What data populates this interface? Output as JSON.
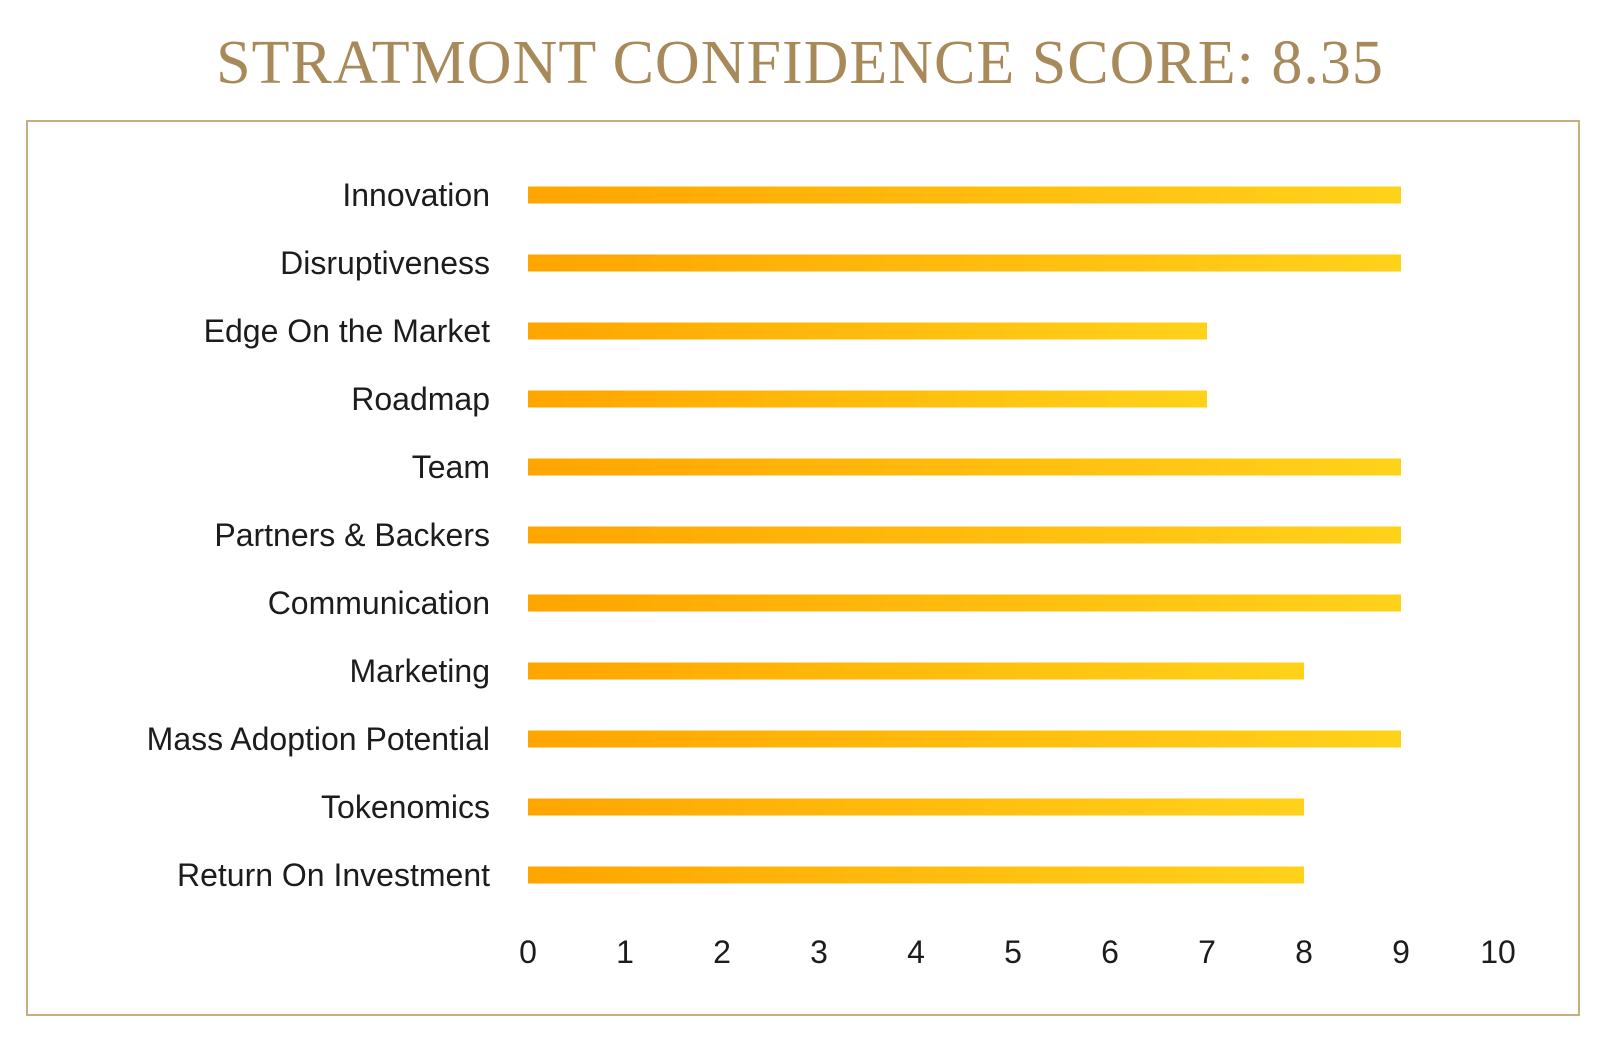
{
  "chart_data": {
    "type": "bar",
    "orientation": "horizontal",
    "title": "STRATMONT CONFIDENCE SCORE: 8.35",
    "categories": [
      "Innovation",
      "Disruptiveness",
      "Edge On the Market",
      "Roadmap",
      "Team",
      "Partners & Backers",
      "Communication",
      "Marketing",
      "Mass Adoption Potential",
      "Tokenomics",
      "Return On Investment"
    ],
    "values": [
      9,
      9,
      7,
      7,
      9,
      9,
      9,
      8,
      9,
      8,
      8
    ],
    "xlim": [
      0,
      10
    ],
    "xticks": [
      0,
      1,
      2,
      3,
      4,
      5,
      6,
      7,
      8,
      9,
      10
    ],
    "grid": false,
    "colors": {
      "title": "#a88a5a",
      "frame": "#c8ad84",
      "bar_start": "#ffa500",
      "bar_end": "#ffd21a",
      "text": "#1c1c1c"
    }
  }
}
